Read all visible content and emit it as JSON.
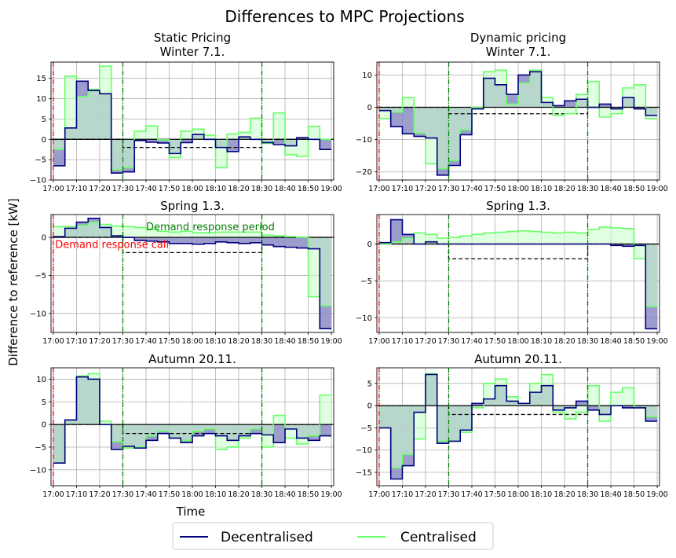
{
  "figure": {
    "suptitle": "Differences to MPC Projections",
    "ylabel": "Difference to reference [kW]",
    "xlabel": "Time",
    "legend": {
      "decentralised": "Decentralised",
      "centralised": "Centralised"
    },
    "annotations": {
      "dr_period": "Demand response period",
      "dr_call": "Demand response call"
    },
    "colors": {
      "decentralised": "#000080",
      "centralised": "#66ff66",
      "fill_dec": "#8b8bc4",
      "fill_cen": "#ccffcc",
      "dr_call": "#ff0000",
      "dr_period": "#008000",
      "reference": "#000000"
    },
    "time_ticks": [
      "17:00",
      "17:10",
      "17:20",
      "17:30",
      "17:40",
      "17:50",
      "18:00",
      "18:10",
      "18:20",
      "18:30",
      "18:40",
      "18:50",
      "19:00"
    ]
  },
  "chart_data": [
    {
      "type": "line",
      "step": true,
      "title": "Static Pricing\nWinter 7.1.",
      "x": [
        0,
        5,
        10,
        15,
        20,
        25,
        30,
        35,
        40,
        45,
        50,
        55,
        60,
        65,
        70,
        75,
        80,
        85,
        90,
        95,
        100,
        105,
        110,
        115
      ],
      "series": [
        {
          "name": "Decentralised",
          "values": [
            -6.5,
            2.8,
            14.3,
            12,
            11.2,
            -8.3,
            -8,
            -0.3,
            -0.7,
            -0.9,
            -3.5,
            -0.8,
            1.2,
            0,
            -2,
            -3,
            0.6,
            0,
            -0.8,
            -1.3,
            -1.6,
            0.4,
            0,
            -2.5
          ]
        },
        {
          "name": "Centralised",
          "values": [
            -2.5,
            15.5,
            10.5,
            12.3,
            18,
            -7.5,
            -7,
            2,
            3.3,
            -0.1,
            -4.5,
            2,
            2.5,
            1,
            -7,
            1.3,
            1.7,
            5.2,
            -1,
            6.5,
            -3.8,
            -4.2,
            3.2,
            0
          ]
        }
      ],
      "reference": [
        0,
        0,
        0,
        0,
        0,
        0,
        -2,
        -2,
        -2,
        -2,
        -2,
        -2,
        -2,
        -2,
        -2,
        -2,
        -2,
        -2,
        0,
        0,
        0,
        0,
        0,
        0
      ],
      "ylim": [
        -10,
        19
      ],
      "yticks": [
        -10,
        -5,
        0,
        5,
        10,
        15
      ],
      "markers": {
        "dr_call": 0,
        "dr_period": [
          30,
          90
        ]
      }
    },
    {
      "type": "line",
      "step": true,
      "title": "Dynamic pricing\nWinter 7.1.",
      "x": [
        0,
        5,
        10,
        15,
        20,
        25,
        30,
        35,
        40,
        45,
        50,
        55,
        60,
        65,
        70,
        75,
        80,
        85,
        90,
        95,
        100,
        105,
        110,
        115
      ],
      "series": [
        {
          "name": "Decentralised",
          "values": [
            -1,
            -6,
            -8.2,
            -9,
            -9.5,
            -21,
            -18,
            -8.5,
            -0.5,
            9,
            7,
            4,
            10,
            11,
            1.5,
            0.5,
            2,
            2.5,
            0,
            1,
            -0.5,
            3,
            -0.5,
            -2.5
          ]
        },
        {
          "name": "Centralised",
          "values": [
            -3.5,
            -1.5,
            3,
            -8,
            -17.5,
            -19,
            -16.5,
            -7,
            0,
            11,
            11.5,
            1,
            7.5,
            11.5,
            3,
            -2.5,
            -2,
            4,
            8,
            -3,
            -2,
            6,
            7,
            -3.5
          ]
        }
      ],
      "reference": [
        0,
        0,
        0,
        0,
        0,
        0,
        -2,
        -2,
        -2,
        -2,
        -2,
        -2,
        -2,
        -2,
        -2,
        -2,
        -2,
        -2,
        0,
        0,
        0,
        0,
        0,
        0
      ],
      "ylim": [
        -22.5,
        14
      ],
      "yticks": [
        -20,
        -10,
        0,
        10
      ],
      "markers": {
        "dr_call": 0,
        "dr_period": [
          30,
          90
        ]
      }
    },
    {
      "type": "line",
      "step": true,
      "title": "Spring 1.3.",
      "x": [
        0,
        5,
        10,
        15,
        20,
        25,
        30,
        35,
        40,
        45,
        50,
        55,
        60,
        65,
        70,
        75,
        80,
        85,
        90,
        95,
        100,
        105,
        110,
        115
      ],
      "series": [
        {
          "name": "Decentralised",
          "values": [
            0.1,
            1.2,
            2,
            2.5,
            1.3,
            0.2,
            0,
            -0.4,
            -0.5,
            -0.6,
            -0.8,
            -0.8,
            -0.9,
            -0.8,
            -0.6,
            -0.7,
            -0.8,
            -0.7,
            -1,
            -1.2,
            -1.3,
            -1.4,
            -1.5,
            -12
          ]
        },
        {
          "name": "Centralised",
          "values": [
            1.4,
            1.4,
            1.6,
            2,
            1.7,
            1.5,
            1.4,
            1.3,
            1.1,
            0.8,
            0.7,
            0.8,
            0.6,
            0.6,
            0.7,
            0.7,
            0.7,
            0.7,
            0.3,
            0.2,
            0.1,
            0,
            -7.8,
            -9
          ]
        }
      ],
      "reference": [
        0,
        0,
        0,
        0,
        0,
        0,
        -2,
        -2,
        -2,
        -2,
        -2,
        -2,
        -2,
        -2,
        -2,
        -2,
        -2,
        -2,
        0,
        0,
        0,
        0,
        0,
        0
      ],
      "ylim": [
        -12.5,
        3
      ],
      "yticks": [
        -10,
        -5,
        0
      ],
      "markers": {
        "dr_call": 0,
        "dr_period": [
          30,
          90
        ]
      }
    },
    {
      "type": "line",
      "step": true,
      "title": "Spring 1.3.",
      "x": [
        0,
        5,
        10,
        15,
        20,
        25,
        30,
        35,
        40,
        45,
        50,
        55,
        60,
        65,
        70,
        75,
        80,
        85,
        90,
        95,
        100,
        105,
        110,
        115
      ],
      "series": [
        {
          "name": "Decentralised",
          "values": [
            0.2,
            3.3,
            1.3,
            0,
            0.3,
            0,
            0,
            0,
            0,
            0,
            0,
            0,
            0,
            0,
            0,
            0,
            0,
            0,
            0,
            0,
            -0.2,
            -0.3,
            -0.2,
            -11.5
          ]
        },
        {
          "name": "Centralised",
          "values": [
            0,
            0.3,
            0.8,
            1.5,
            1.3,
            0.8,
            0.9,
            1.1,
            1.3,
            1.5,
            1.6,
            1.7,
            1.8,
            1.7,
            1.6,
            1.5,
            1.6,
            1.5,
            2,
            2.3,
            2.2,
            2.1,
            -2,
            -8.5
          ]
        }
      ],
      "reference": [
        0,
        0,
        0,
        0,
        0,
        0,
        -2,
        -2,
        -2,
        -2,
        -2,
        -2,
        -2,
        -2,
        -2,
        -2,
        -2,
        -2,
        0,
        0,
        0,
        0,
        0,
        0
      ],
      "ylim": [
        -12,
        4
      ],
      "yticks": [
        -10,
        -5,
        0
      ],
      "markers": {
        "dr_call": 0,
        "dr_period": [
          30,
          90
        ]
      }
    },
    {
      "type": "line",
      "step": true,
      "title": "Autumn 20.11.",
      "x": [
        0,
        5,
        10,
        15,
        20,
        25,
        30,
        35,
        40,
        45,
        50,
        55,
        60,
        65,
        70,
        75,
        80,
        85,
        90,
        95,
        100,
        105,
        110,
        115
      ],
      "series": [
        {
          "name": "Decentralised",
          "values": [
            -8.5,
            1,
            10.5,
            10,
            0,
            -5.5,
            -4.8,
            -5.2,
            -3.5,
            -2,
            -3,
            -4,
            -2.5,
            -2,
            -2.5,
            -3.5,
            -2.5,
            -2,
            -2.3,
            -4,
            -1,
            -3,
            -3.5,
            -2.5
          ]
        },
        {
          "name": "Centralised",
          "values": [
            -8.5,
            1,
            10.7,
            11.2,
            0.7,
            -3.8,
            -5.2,
            -5,
            -2.5,
            -1.5,
            -3,
            -3.5,
            -1.5,
            -1,
            -5.5,
            -5,
            -3,
            -1,
            -5,
            2,
            -3,
            -4.3,
            -2.5,
            6.5
          ]
        }
      ],
      "reference": [
        0,
        0,
        0,
        0,
        0,
        0,
        -2,
        -2,
        -2,
        -2,
        -2,
        -2,
        -2,
        -2,
        -2,
        -2,
        -2,
        -2,
        0,
        0,
        0,
        0,
        0,
        0
      ],
      "ylim": [
        -13.5,
        12.5
      ],
      "yticks": [
        -10,
        -5,
        0,
        5,
        10
      ],
      "markers": {
        "dr_call": 0,
        "dr_period": [
          30,
          90
        ]
      }
    },
    {
      "type": "line",
      "step": true,
      "title": "Autumn 20.11.",
      "x": [
        0,
        5,
        10,
        15,
        20,
        25,
        30,
        35,
        40,
        45,
        50,
        55,
        60,
        65,
        70,
        75,
        80,
        85,
        90,
        95,
        100,
        105,
        110,
        115
      ],
      "series": [
        {
          "name": "Decentralised",
          "values": [
            -5,
            -16.5,
            -13.5,
            -1.5,
            7,
            -8.5,
            -8,
            -5.5,
            0.5,
            1.5,
            4.5,
            1,
            0.5,
            3,
            4.5,
            -1,
            -0.5,
            1,
            -1,
            -2,
            0,
            -0.5,
            -0.5,
            -3.5
          ]
        },
        {
          "name": "Centralised",
          "values": [
            -5,
            -14,
            -11,
            -7.5,
            7.2,
            -8,
            -8,
            -6,
            -0.5,
            5,
            6,
            2,
            0.5,
            5,
            7,
            -1.5,
            -3,
            -1.5,
            4.5,
            -3.5,
            3,
            4,
            -0.5,
            -2.5
          ]
        }
      ],
      "reference": [
        0,
        0,
        0,
        0,
        0,
        0,
        -2,
        -2,
        -2,
        -2,
        -2,
        -2,
        -2,
        -2,
        -2,
        -2,
        -2,
        -2,
        0,
        0,
        0,
        0,
        0,
        0
      ],
      "ylim": [
        -18,
        8.5
      ],
      "yticks": [
        -15,
        -10,
        -5,
        0,
        5
      ],
      "markers": {
        "dr_call": 0,
        "dr_period": [
          30,
          90
        ]
      }
    }
  ]
}
